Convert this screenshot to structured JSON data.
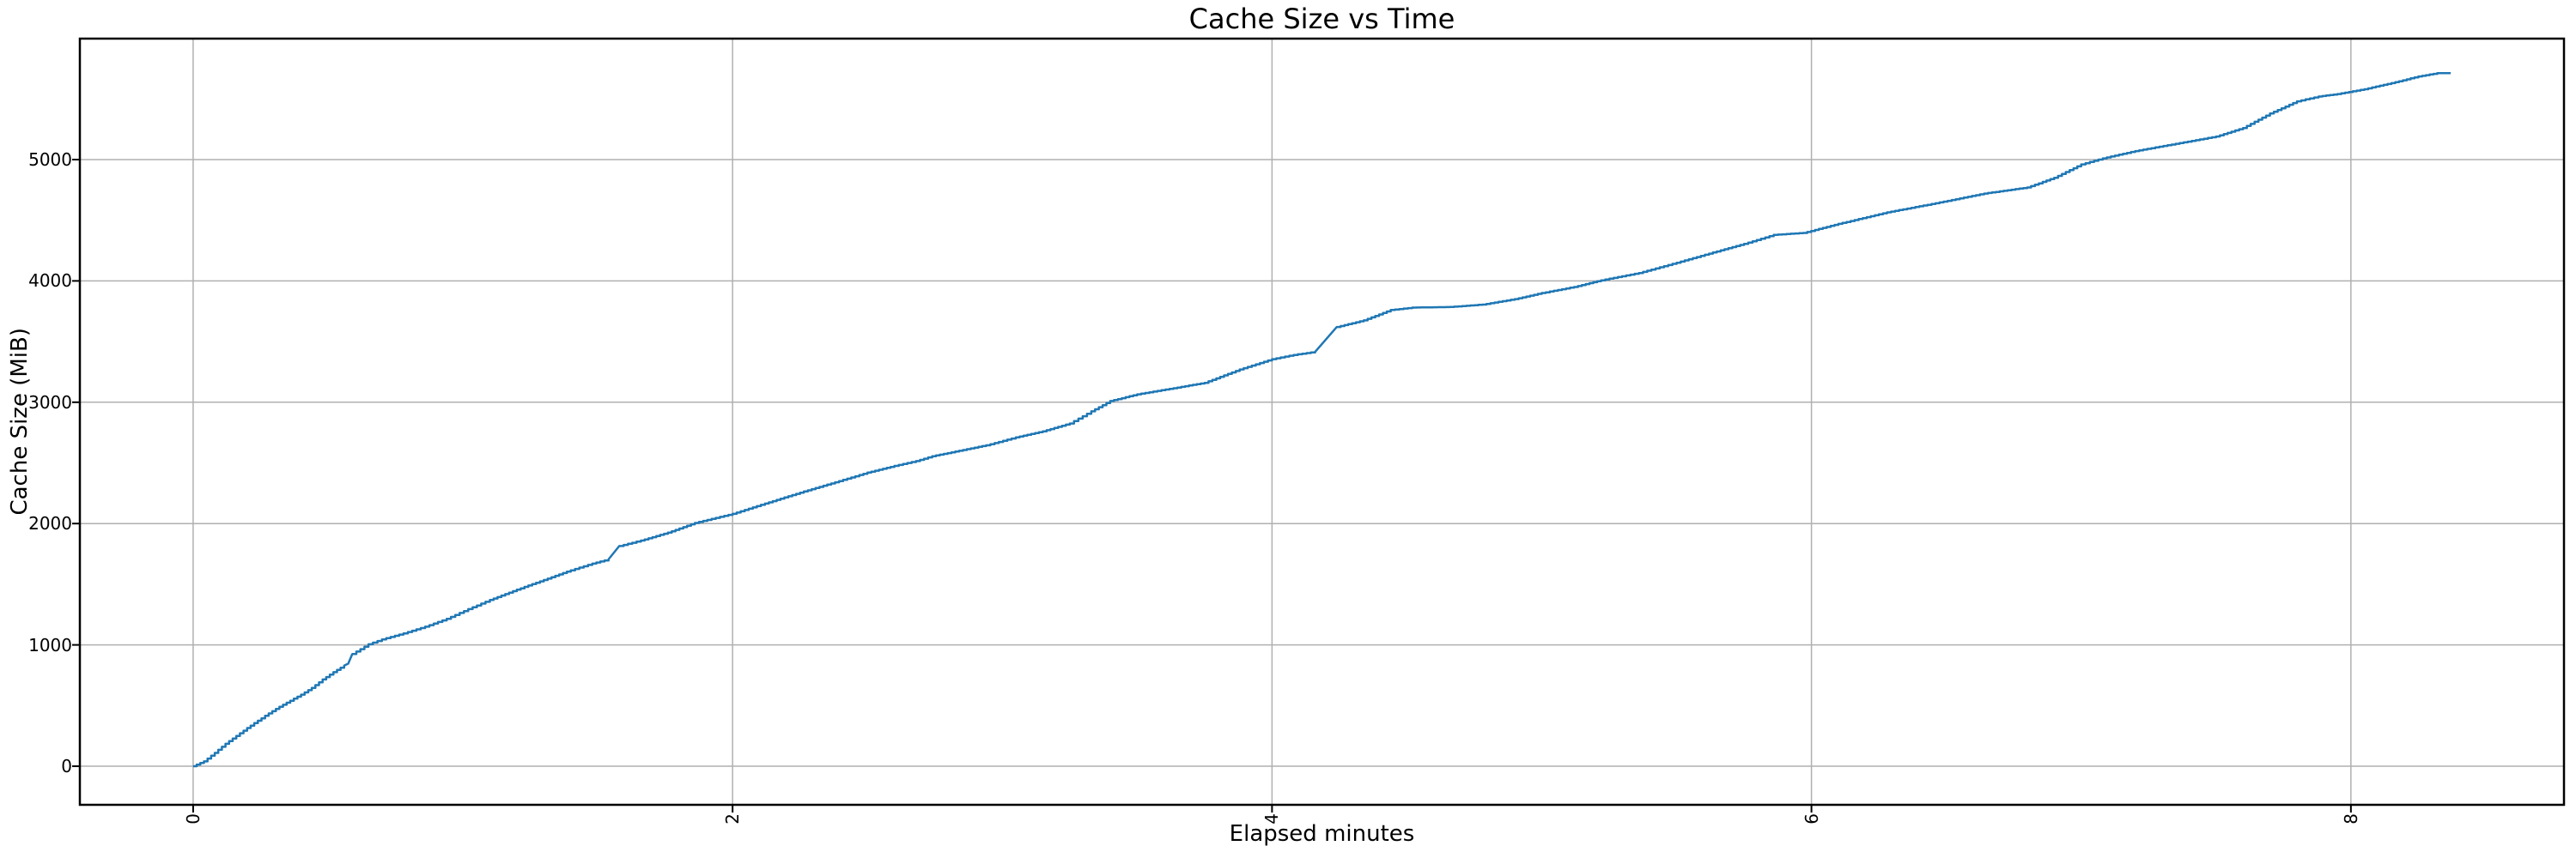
{
  "chart_data": {
    "type": "line",
    "title": "Cache Size vs Time",
    "xlabel": "Elapsed minutes",
    "ylabel": "Cache Size (MiB)",
    "xlim": [
      -0.42,
      8.79
    ],
    "ylim": [
      -318,
      5997
    ],
    "xticks": [
      0,
      2,
      4,
      6,
      8
    ],
    "yticks": [
      0,
      1000,
      2000,
      3000,
      4000,
      5000
    ],
    "xtick_labels": [
      "0",
      "2",
      "4",
      "6",
      "8"
    ],
    "ytick_labels": [
      "0",
      "1000",
      "2000",
      "3000",
      "4000",
      "5000"
    ],
    "xtick_rotation": 90,
    "grid": true,
    "legend": "none",
    "line_color": "#1f77b4",
    "grid_color": "#b0b0b0",
    "spine_color": "#000000",
    "background": "#ffffff",
    "series_name": "cache-size",
    "points": [
      [
        0.0,
        0
      ],
      [
        0.04,
        40
      ],
      [
        0.08,
        110
      ],
      [
        0.12,
        185
      ],
      [
        0.16,
        250
      ],
      [
        0.2,
        315
      ],
      [
        0.24,
        375
      ],
      [
        0.28,
        435
      ],
      [
        0.32,
        490
      ],
      [
        0.36,
        540
      ],
      [
        0.4,
        590
      ],
      [
        0.44,
        645
      ],
      [
        0.48,
        715
      ],
      [
        0.52,
        775
      ],
      [
        0.56,
        830
      ],
      [
        0.575,
        845
      ],
      [
        0.59,
        925
      ],
      [
        0.62,
        965
      ],
      [
        0.65,
        1005
      ],
      [
        0.7,
        1045
      ],
      [
        0.78,
        1095
      ],
      [
        0.86,
        1150
      ],
      [
        0.94,
        1215
      ],
      [
        1.02,
        1295
      ],
      [
        1.1,
        1370
      ],
      [
        1.2,
        1455
      ],
      [
        1.3,
        1535
      ],
      [
        1.4,
        1615
      ],
      [
        1.48,
        1670
      ],
      [
        1.54,
        1705
      ],
      [
        1.58,
        1815
      ],
      [
        1.66,
        1860
      ],
      [
        1.76,
        1925
      ],
      [
        1.86,
        2005
      ],
      [
        2.0,
        2080
      ],
      [
        2.12,
        2165
      ],
      [
        2.25,
        2255
      ],
      [
        2.38,
        2340
      ],
      [
        2.5,
        2420
      ],
      [
        2.6,
        2475
      ],
      [
        2.68,
        2515
      ],
      [
        2.74,
        2555
      ],
      [
        2.84,
        2600
      ],
      [
        2.94,
        2645
      ],
      [
        3.05,
        2710
      ],
      [
        3.15,
        2760
      ],
      [
        3.25,
        2825
      ],
      [
        3.33,
        2925
      ],
      [
        3.4,
        3010
      ],
      [
        3.5,
        3065
      ],
      [
        3.62,
        3110
      ],
      [
        3.75,
        3160
      ],
      [
        3.88,
        3270
      ],
      [
        4.0,
        3355
      ],
      [
        4.08,
        3390
      ],
      [
        4.16,
        3415
      ],
      [
        4.24,
        3620
      ],
      [
        4.34,
        3675
      ],
      [
        4.44,
        3760
      ],
      [
        4.52,
        3780
      ],
      [
        4.66,
        3785
      ],
      [
        4.78,
        3805
      ],
      [
        4.9,
        3850
      ],
      [
        5.0,
        3900
      ],
      [
        5.12,
        3950
      ],
      [
        5.22,
        4005
      ],
      [
        5.36,
        4065
      ],
      [
        5.5,
        4150
      ],
      [
        5.62,
        4225
      ],
      [
        5.75,
        4305
      ],
      [
        5.86,
        4380
      ],
      [
        5.97,
        4395
      ],
      [
        6.1,
        4470
      ],
      [
        6.28,
        4565
      ],
      [
        6.46,
        4640
      ],
      [
        6.64,
        4720
      ],
      [
        6.8,
        4770
      ],
      [
        6.9,
        4850
      ],
      [
        7.0,
        4960
      ],
      [
        7.08,
        5010
      ],
      [
        7.2,
        5070
      ],
      [
        7.35,
        5130
      ],
      [
        7.5,
        5190
      ],
      [
        7.6,
        5260
      ],
      [
        7.7,
        5380
      ],
      [
        7.8,
        5480
      ],
      [
        7.88,
        5520
      ],
      [
        7.95,
        5540
      ],
      [
        8.05,
        5580
      ],
      [
        8.15,
        5630
      ],
      [
        8.25,
        5685
      ],
      [
        8.32,
        5712
      ],
      [
        8.37,
        5713
      ]
    ]
  }
}
